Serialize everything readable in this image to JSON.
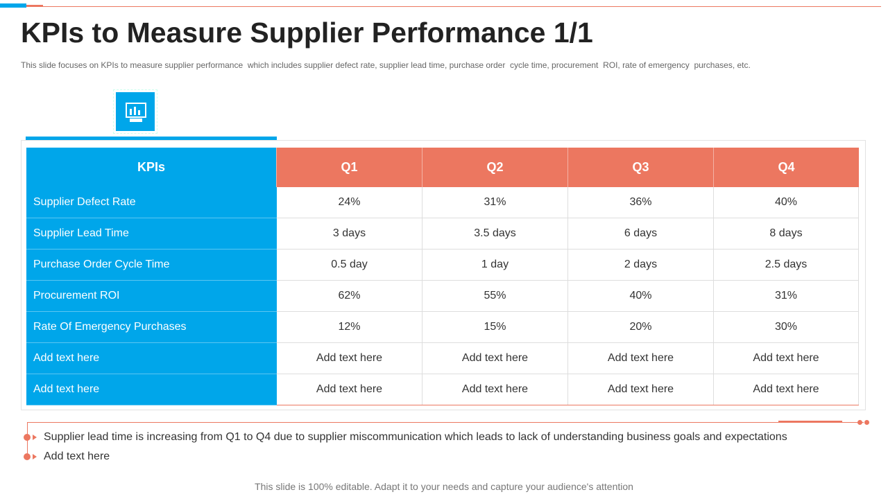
{
  "header": {
    "title": "KPIs to Measure Supplier Performance 1/1",
    "subtitle": "This slide focuses on KPIs to measure supplier performance  which includes supplier defect rate, supplier lead time, purchase order  cycle time, procurement  ROI, rate of emergency  purchases, etc."
  },
  "table": {
    "headers": [
      "KPIs",
      "Q1",
      "Q2",
      "Q3",
      "Q4"
    ],
    "rows": [
      [
        "Supplier Defect Rate",
        "24%",
        "31%",
        "36%",
        "40%"
      ],
      [
        "Supplier Lead Time",
        "3 days",
        "3.5 days",
        "6 days",
        "8 days"
      ],
      [
        "Purchase Order Cycle Time",
        "0.5 day",
        "1 day",
        "2 days",
        "2.5 days"
      ],
      [
        "Procurement ROI",
        "62%",
        "55%",
        "40%",
        "31%"
      ],
      [
        "Rate Of Emergency Purchases",
        "12%",
        "15%",
        "20%",
        "30%"
      ],
      [
        "Add text here",
        "Add text here",
        "Add text here",
        "Add text here",
        "Add text here"
      ],
      [
        "Add text here",
        "Add text here",
        "Add text here",
        "Add text here",
        "Add text here"
      ]
    ]
  },
  "notes": [
    "Supplier lead time is increasing from Q1 to Q4 due to supplier miscommunication which leads to lack of understanding business goals and expectations",
    "Add text here"
  ],
  "footer": "This slide is 100% editable. Adapt it to your needs and capture your audience's attention"
}
